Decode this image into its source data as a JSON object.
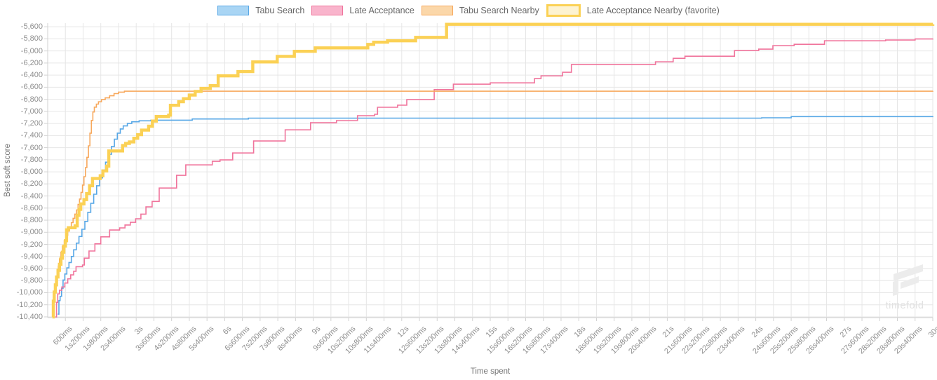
{
  "watermark": {
    "text": "timefold"
  },
  "chart_data": {
    "type": "line",
    "stepped": true,
    "title": "",
    "xlabel": "Time spent",
    "ylabel": "Best soft score",
    "xlim_seconds": [
      0,
      30
    ],
    "ylim": [
      -10412,
      -5540
    ],
    "grid": true,
    "legend_position": "top",
    "grid_color": "#e6e6e6",
    "axis_border_color": "#d2d2d2",
    "tick_color": "#8f8f8f",
    "y_ticks": [
      {
        "v": -5600,
        "label": "-5,600"
      },
      {
        "v": -5800,
        "label": "-5,800"
      },
      {
        "v": -6000,
        "label": "-6,000"
      },
      {
        "v": -6200,
        "label": "-6,200"
      },
      {
        "v": -6400,
        "label": "-6,400"
      },
      {
        "v": -6600,
        "label": "-6,600"
      },
      {
        "v": -6800,
        "label": "-6,800"
      },
      {
        "v": -7000,
        "label": "-7,000"
      },
      {
        "v": -7200,
        "label": "-7,200"
      },
      {
        "v": -7400,
        "label": "-7,400"
      },
      {
        "v": -7600,
        "label": "-7,600"
      },
      {
        "v": -7800,
        "label": "-7,800"
      },
      {
        "v": -8000,
        "label": "-8,000"
      },
      {
        "v": -8200,
        "label": "-8,200"
      },
      {
        "v": -8400,
        "label": "-8,400"
      },
      {
        "v": -8600,
        "label": "-8,600"
      },
      {
        "v": -8800,
        "label": "-8,800"
      },
      {
        "v": -9000,
        "label": "-9,000"
      },
      {
        "v": -9200,
        "label": "-9,200"
      },
      {
        "v": -9400,
        "label": "-9,400"
      },
      {
        "v": -9600,
        "label": "-9,600"
      },
      {
        "v": -9800,
        "label": "-9,800"
      },
      {
        "v": -10000,
        "label": "-10,000"
      },
      {
        "v": -10200,
        "label": "-10,200"
      },
      {
        "v": -10400,
        "label": "-10,400"
      }
    ],
    "x_ticks": [
      {
        "t": 0.6,
        "label": "600ms"
      },
      {
        "t": 1.2,
        "label": "1s200ms"
      },
      {
        "t": 1.8,
        "label": "1s800ms"
      },
      {
        "t": 2.4,
        "label": "2s400ms"
      },
      {
        "t": 3,
        "label": "3s"
      },
      {
        "t": 3.6,
        "label": "3s600ms"
      },
      {
        "t": 4.2,
        "label": "4s200ms"
      },
      {
        "t": 4.8,
        "label": "4s800ms"
      },
      {
        "t": 5.4,
        "label": "5s400ms"
      },
      {
        "t": 6,
        "label": "6s"
      },
      {
        "t": 6.6,
        "label": "6s600ms"
      },
      {
        "t": 7.2,
        "label": "7s200ms"
      },
      {
        "t": 7.8,
        "label": "7s800ms"
      },
      {
        "t": 8.4,
        "label": "8s400ms"
      },
      {
        "t": 9,
        "label": "9s"
      },
      {
        "t": 9.6,
        "label": "9s600ms"
      },
      {
        "t": 10.2,
        "label": "10s200ms"
      },
      {
        "t": 10.8,
        "label": "10s800ms"
      },
      {
        "t": 11.4,
        "label": "11s400ms"
      },
      {
        "t": 12,
        "label": "12s"
      },
      {
        "t": 12.6,
        "label": "12s600ms"
      },
      {
        "t": 13.2,
        "label": "13s200ms"
      },
      {
        "t": 13.8,
        "label": "13s800ms"
      },
      {
        "t": 14.4,
        "label": "14s400ms"
      },
      {
        "t": 15,
        "label": "15s"
      },
      {
        "t": 15.6,
        "label": "15s600ms"
      },
      {
        "t": 16.2,
        "label": "16s200ms"
      },
      {
        "t": 16.8,
        "label": "16s800ms"
      },
      {
        "t": 17.4,
        "label": "17s400ms"
      },
      {
        "t": 18,
        "label": "18s"
      },
      {
        "t": 18.6,
        "label": "18s600ms"
      },
      {
        "t": 19.2,
        "label": "19s200ms"
      },
      {
        "t": 19.8,
        "label": "19s800ms"
      },
      {
        "t": 20.4,
        "label": "20s400ms"
      },
      {
        "t": 21,
        "label": "21s"
      },
      {
        "t": 21.6,
        "label": "21s600ms"
      },
      {
        "t": 22.2,
        "label": "22s200ms"
      },
      {
        "t": 22.8,
        "label": "22s800ms"
      },
      {
        "t": 23.4,
        "label": "23s400ms"
      },
      {
        "t": 24,
        "label": "24s"
      },
      {
        "t": 24.6,
        "label": "24s600ms"
      },
      {
        "t": 25.2,
        "label": "25s200ms"
      },
      {
        "t": 25.8,
        "label": "25s800ms"
      },
      {
        "t": 26.4,
        "label": "26s400ms"
      },
      {
        "t": 27,
        "label": "27s"
      },
      {
        "t": 27.6,
        "label": "27s600ms"
      },
      {
        "t": 28.2,
        "label": "28s200ms"
      },
      {
        "t": 28.8,
        "label": "28s800ms"
      },
      {
        "t": 29.4,
        "label": "29s400ms"
      },
      {
        "t": 30,
        "label": "30s"
      }
    ],
    "series": [
      {
        "name": "Tabu Search",
        "color": "#57a7e6",
        "fill": "#a9d5f4",
        "width": 1.6,
        "favorite": false,
        "points": [
          [
            0.34,
            -10355
          ],
          [
            0.38,
            -10130
          ],
          [
            0.42,
            -10060
          ],
          [
            0.47,
            -9930
          ],
          [
            0.52,
            -9790
          ],
          [
            0.58,
            -9690
          ],
          [
            0.65,
            -9590
          ],
          [
            0.72,
            -9500
          ],
          [
            0.8,
            -9400
          ],
          [
            0.88,
            -9290
          ],
          [
            0.97,
            -9180
          ],
          [
            1.06,
            -9070
          ],
          [
            1.16,
            -8950
          ],
          [
            1.26,
            -8820
          ],
          [
            1.36,
            -8670
          ],
          [
            1.46,
            -8520
          ],
          [
            1.56,
            -8370
          ],
          [
            1.66,
            -8230
          ],
          [
            1.76,
            -8100
          ],
          [
            1.86,
            -7970
          ],
          [
            1.96,
            -7840
          ],
          [
            2.06,
            -7710
          ],
          [
            2.16,
            -7580
          ],
          [
            2.26,
            -7460
          ],
          [
            2.36,
            -7360
          ],
          [
            2.46,
            -7290
          ],
          [
            2.56,
            -7240
          ],
          [
            2.7,
            -7200
          ],
          [
            2.85,
            -7172
          ],
          [
            3.1,
            -7156
          ],
          [
            3.5,
            -7146
          ],
          [
            4.9,
            -7126
          ],
          [
            6.8,
            -7112
          ],
          [
            24.2,
            -7106
          ],
          [
            25.2,
            -7086
          ],
          [
            30,
            -7082
          ]
        ]
      },
      {
        "name": "Late Acceptance",
        "color": "#f0749c",
        "fill": "#f9b4cc",
        "width": 1.6,
        "favorite": false,
        "points": [
          [
            0.26,
            -10400
          ],
          [
            0.3,
            -10160
          ],
          [
            0.34,
            -10020
          ],
          [
            0.4,
            -9960
          ],
          [
            0.48,
            -9905
          ],
          [
            0.58,
            -9840
          ],
          [
            0.68,
            -9770
          ],
          [
            0.78,
            -9705
          ],
          [
            0.88,
            -9645
          ],
          [
            0.96,
            -9570
          ],
          [
            1.18,
            -9542
          ],
          [
            1.24,
            -9428
          ],
          [
            1.4,
            -9310
          ],
          [
            1.6,
            -9192
          ],
          [
            1.8,
            -9076
          ],
          [
            2.1,
            -8963
          ],
          [
            2.44,
            -8928
          ],
          [
            2.62,
            -8880
          ],
          [
            2.8,
            -8835
          ],
          [
            2.98,
            -8778
          ],
          [
            3.16,
            -8700
          ],
          [
            3.33,
            -8580
          ],
          [
            3.54,
            -8490
          ],
          [
            3.78,
            -8268
          ],
          [
            4.37,
            -8058
          ],
          [
            4.68,
            -7885
          ],
          [
            5.58,
            -7826
          ],
          [
            5.84,
            -7803
          ],
          [
            6.27,
            -7688
          ],
          [
            6.98,
            -7490
          ],
          [
            8.05,
            -7305
          ],
          [
            8.91,
            -7188
          ],
          [
            9.79,
            -7152
          ],
          [
            10.5,
            -7072
          ],
          [
            11.08,
            -7048
          ],
          [
            11.18,
            -6932
          ],
          [
            11.86,
            -6897
          ],
          [
            12.17,
            -6806
          ],
          [
            13.1,
            -6640
          ],
          [
            13.75,
            -6550
          ],
          [
            15.0,
            -6528
          ],
          [
            16.5,
            -6458
          ],
          [
            16.72,
            -6412
          ],
          [
            17.45,
            -6353
          ],
          [
            17.75,
            -6226
          ],
          [
            20.6,
            -6180
          ],
          [
            21.2,
            -6122
          ],
          [
            21.6,
            -6087
          ],
          [
            23.28,
            -5994
          ],
          [
            24.1,
            -5970
          ],
          [
            24.58,
            -5913
          ],
          [
            25.3,
            -5890
          ],
          [
            26.33,
            -5832
          ],
          [
            28.4,
            -5820
          ],
          [
            29.4,
            -5802
          ],
          [
            30,
            -5795
          ]
        ]
      },
      {
        "name": "Tabu Search Nearby",
        "color": "#f7a85c",
        "fill": "#fbd7a9",
        "width": 1.6,
        "favorite": false,
        "points": [
          [
            0.18,
            -10400
          ],
          [
            0.21,
            -10150
          ],
          [
            0.24,
            -9990
          ],
          [
            0.28,
            -9850
          ],
          [
            0.32,
            -9700
          ],
          [
            0.36,
            -9560
          ],
          [
            0.4,
            -9440
          ],
          [
            0.45,
            -9330
          ],
          [
            0.5,
            -9230
          ],
          [
            0.56,
            -9140
          ],
          [
            0.62,
            -9050
          ],
          [
            0.68,
            -8980
          ],
          [
            0.74,
            -8910
          ],
          [
            0.8,
            -8840
          ],
          [
            0.86,
            -8770
          ],
          [
            0.92,
            -8700
          ],
          [
            0.98,
            -8630
          ],
          [
            1.03,
            -8540
          ],
          [
            1.08,
            -8450
          ],
          [
            1.13,
            -8340
          ],
          [
            1.18,
            -8220
          ],
          [
            1.23,
            -8080
          ],
          [
            1.28,
            -7930
          ],
          [
            1.33,
            -7760
          ],
          [
            1.38,
            -7570
          ],
          [
            1.43,
            -7360
          ],
          [
            1.48,
            -7150
          ],
          [
            1.53,
            -7010
          ],
          [
            1.58,
            -6930
          ],
          [
            1.65,
            -6880
          ],
          [
            1.72,
            -6842
          ],
          [
            1.82,
            -6806
          ],
          [
            1.95,
            -6776
          ],
          [
            2.1,
            -6742
          ],
          [
            2.25,
            -6706
          ],
          [
            2.4,
            -6682
          ],
          [
            2.6,
            -6666
          ],
          [
            30,
            -6662
          ]
        ]
      },
      {
        "name": "Late Acceptance Nearby (favorite)",
        "color": "#fbd155",
        "fill": "#fdf3d1",
        "width": 4.4,
        "favorite": true,
        "points": [
          [
            0.16,
            -10400
          ],
          [
            0.19,
            -10140
          ],
          [
            0.22,
            -9990
          ],
          [
            0.26,
            -9870
          ],
          [
            0.3,
            -9740
          ],
          [
            0.35,
            -9630
          ],
          [
            0.4,
            -9530
          ],
          [
            0.45,
            -9430
          ],
          [
            0.5,
            -9330
          ],
          [
            0.55,
            -9230
          ],
          [
            0.6,
            -9140
          ],
          [
            0.64,
            -8960
          ],
          [
            0.7,
            -8925
          ],
          [
            0.93,
            -8895
          ],
          [
            1.0,
            -8720
          ],
          [
            1.06,
            -8620
          ],
          [
            1.12,
            -8530
          ],
          [
            1.23,
            -8460
          ],
          [
            1.32,
            -8360
          ],
          [
            1.42,
            -8230
          ],
          [
            1.52,
            -8110
          ],
          [
            1.78,
            -8065
          ],
          [
            1.87,
            -7985
          ],
          [
            2.0,
            -7905
          ],
          [
            2.07,
            -7655
          ],
          [
            2.54,
            -7565
          ],
          [
            2.64,
            -7530
          ],
          [
            2.77,
            -7505
          ],
          [
            2.92,
            -7445
          ],
          [
            3.05,
            -7385
          ],
          [
            3.18,
            -7310
          ],
          [
            3.42,
            -7245
          ],
          [
            3.55,
            -7160
          ],
          [
            3.68,
            -7085
          ],
          [
            4.1,
            -7062
          ],
          [
            4.16,
            -6900
          ],
          [
            4.44,
            -6840
          ],
          [
            4.6,
            -6790
          ],
          [
            4.8,
            -6730
          ],
          [
            5.0,
            -6670
          ],
          [
            5.2,
            -6620
          ],
          [
            5.51,
            -6575
          ],
          [
            5.78,
            -6412
          ],
          [
            6.45,
            -6342
          ],
          [
            6.95,
            -6182
          ],
          [
            7.78,
            -6090
          ],
          [
            8.36,
            -6006
          ],
          [
            9.07,
            -5950
          ],
          [
            10.85,
            -5892
          ],
          [
            11.05,
            -5856
          ],
          [
            11.52,
            -5832
          ],
          [
            12.47,
            -5775
          ],
          [
            13.52,
            -5560
          ],
          [
            30,
            -5558
          ]
        ]
      }
    ]
  }
}
